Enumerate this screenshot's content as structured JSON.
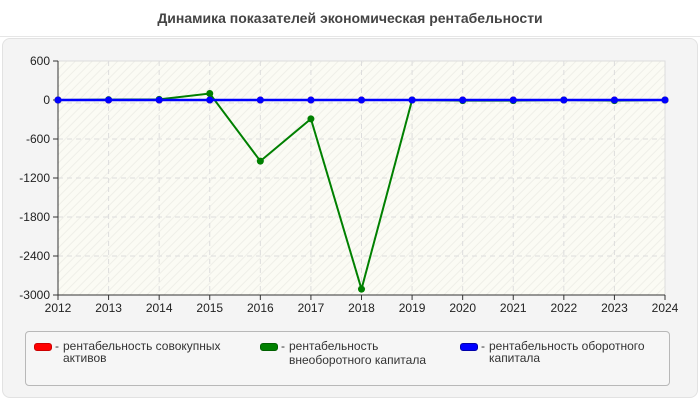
{
  "chart_data": {
    "type": "line",
    "title": "Динамика показателей экономическая рентабельности",
    "xlabel": "",
    "ylabel": "",
    "x": [
      2012,
      2013,
      2014,
      2015,
      2016,
      2017,
      2018,
      2019,
      2020,
      2021,
      2022,
      2023,
      2024
    ],
    "ylim": [
      -3000,
      600
    ],
    "yticks": [
      600,
      0,
      -600,
      -1200,
      -1800,
      -2400,
      -3000
    ],
    "grid": true,
    "legend_position": "bottom",
    "series": [
      {
        "name": "рентабельность совокупных активов",
        "color": "#ff0000",
        "values": [
          0,
          0,
          0,
          0,
          0,
          0,
          0,
          0,
          0,
          0,
          0,
          0,
          0
        ]
      },
      {
        "name": "рентабельность внеоборотного капитала",
        "color": "#008000",
        "values": [
          0,
          5,
          10,
          100,
          -940,
          -290,
          -2910,
          0,
          -10,
          -10,
          0,
          -10,
          0
        ]
      },
      {
        "name": "рентабельность оборотного капитала",
        "color": "#0000ff",
        "values": [
          0,
          0,
          0,
          0,
          0,
          0,
          0,
          0,
          0,
          0,
          0,
          0,
          0
        ]
      }
    ]
  },
  "header": {
    "title": "Динамика показателей экономическая рентабельности"
  },
  "axes": {
    "y_labels": [
      "600",
      "0",
      "-600",
      "-1200",
      "-1800",
      "-2400",
      "-3000"
    ],
    "x_labels": [
      "2012",
      "2013",
      "2014",
      "2015",
      "2016",
      "2017",
      "2018",
      "2019",
      "2020",
      "2021",
      "2022",
      "2023",
      "2024"
    ]
  },
  "legend": {
    "items": [
      {
        "label": "рентабельность совокупных активов",
        "color": "#ff0000"
      },
      {
        "label": "рентабельность внеоборотного капитала",
        "color": "#008000"
      },
      {
        "label": "рентабельность оборотного капитала",
        "color": "#0000ff"
      }
    ],
    "separator": "-"
  }
}
